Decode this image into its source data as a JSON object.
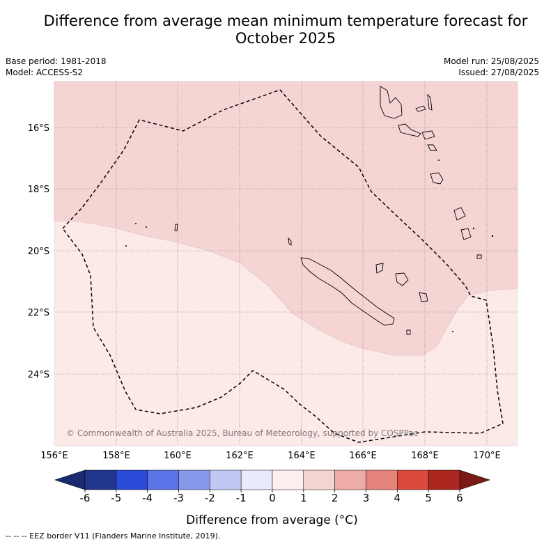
{
  "title_line1": "Difference from average mean minimum temperature forecast for",
  "title_line2": "October 2025",
  "meta": {
    "base_period": "Base period: 1981-2018",
    "model": "Model: ACCESS-S2",
    "model_run": "Model run: 25/08/2025",
    "issued": "Issued: 27/08/2025"
  },
  "map": {
    "lon_labels": [
      "156°E",
      "158°E",
      "160°E",
      "162°E",
      "164°E",
      "166°E",
      "168°E",
      "170°E"
    ],
    "lat_labels": [
      "16°S",
      "18°S",
      "20°S",
      "22°S",
      "24°S"
    ],
    "copyright": "© Commonwealth of Australia 2025, Bureau of Meteorology, supported by COSPPac",
    "region_colors": {
      "anomaly_0_to_1": "#fceae9",
      "anomaly_1_to_2": "#f5d5d3",
      "outside": "#ffffff"
    }
  },
  "colorbar": {
    "tick_labels": [
      "-6",
      "-5",
      "-4",
      "-3",
      "-2",
      "-1",
      "0",
      "1",
      "2",
      "3",
      "4",
      "5",
      "6"
    ],
    "colors": [
      "#22358c",
      "#2c4ad8",
      "#5a73e6",
      "#8797ea",
      "#c1c8f4",
      "#e7ebfa",
      "#fdefed",
      "#f5d5d3",
      "#eeaca6",
      "#e6847c",
      "#dc4a3e",
      "#ac2720"
    ],
    "extend_low": "#1a2a6c",
    "extend_high": "#7a1a14",
    "label": "Difference from average (°C)"
  },
  "footer": "--  --  -- EEZ border V11 (Flanders Marine Institute, 2019)."
}
